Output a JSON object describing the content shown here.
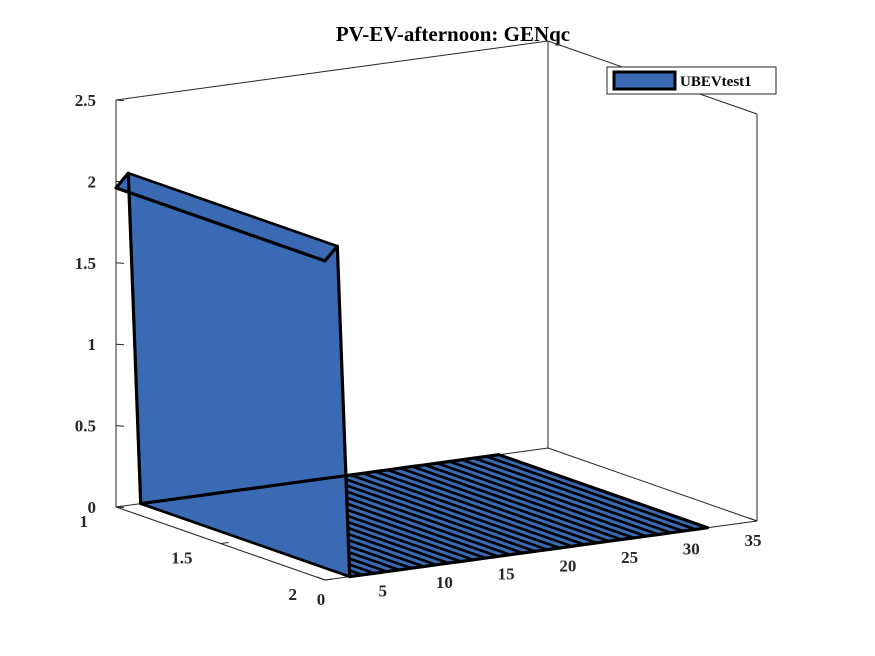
{
  "chart_data": {
    "type": "area",
    "title": "PV-EV-afternoon: GENqc",
    "xlabel": "",
    "ylabel": "",
    "zlabel": "",
    "x_ticks": [
      "0",
      "5",
      "10",
      "15",
      "20",
      "25",
      "30",
      "35"
    ],
    "y_ticks": [
      "1",
      "1.5",
      "2"
    ],
    "z_ticks": [
      "0",
      "0.5",
      "1",
      "1.5",
      "2",
      "2.5"
    ],
    "xlim": [
      0,
      35
    ],
    "ylim": [
      1,
      2
    ],
    "zlim": [
      0,
      2.5
    ],
    "grid": false,
    "legend_position": "top-right",
    "series": [
      {
        "name": "UBEVtest1",
        "color": "#3a6ab4",
        "x": [
          0,
          1,
          2,
          3,
          4,
          5,
          6,
          7,
          8,
          9,
          10,
          11,
          12,
          13,
          14,
          15,
          16,
          17,
          18,
          19,
          20,
          21,
          22,
          23,
          24,
          25,
          26,
          27,
          28,
          29,
          30,
          31
        ],
        "values": [
          1.96,
          2.04,
          0,
          0,
          0,
          0,
          0,
          0,
          0,
          0,
          0,
          0,
          0,
          0,
          0,
          0,
          0,
          0,
          0,
          0,
          0,
          0,
          0,
          0,
          0,
          0,
          0,
          0,
          0,
          0,
          0,
          0
        ]
      }
    ]
  }
}
